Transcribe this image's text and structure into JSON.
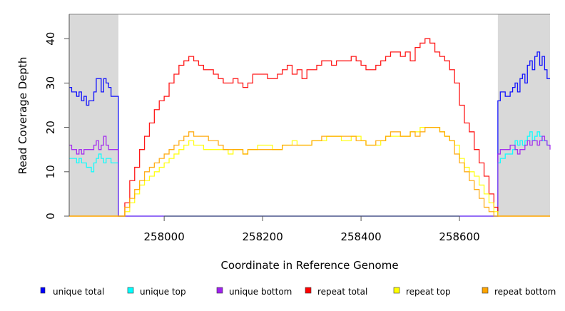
{
  "chart_data": {
    "type": "line",
    "title": "",
    "xlabel": "Coordinate in Reference Genome",
    "ylabel": "Read Coverage Depth",
    "xlim": [
      257807,
      258784
    ],
    "ylim": [
      0,
      45.5
    ],
    "xticks": [
      258000,
      258200,
      258400,
      258600
    ],
    "yticks": [
      0,
      10,
      20,
      30,
      40
    ],
    "shaded_regions": [
      [
        257807,
        257907
      ],
      [
        258678,
        258784
      ]
    ],
    "legend_position": "bottom",
    "series": [
      {
        "name": "unique total",
        "color": "#0000ff",
        "segments": [
          {
            "x": [
              257807,
              257812,
              257817,
              257822,
              257827,
              257832,
              257837,
              257842,
              257847,
              257852,
              257857,
              257862,
              257867,
              257872,
              257877,
              257882,
              257887,
              257892,
              257897,
              257902,
              257907
            ],
            "y": [
              29,
              28,
              28,
              27,
              28,
              26,
              27,
              25,
              26,
              26,
              28,
              31,
              31,
              28,
              31,
              30,
              29,
              27,
              27,
              27,
              27
            ]
          },
          {
            "x": [
              257907,
              258678
            ],
            "y": [
              0,
              0
            ]
          },
          {
            "x": [
              258678,
              258683,
              258688,
              258693,
              258698,
              258703,
              258708,
              258713,
              258718,
              258723,
              258728,
              258733,
              258738,
              258743,
              258748,
              258753,
              258758,
              258763,
              258768,
              258773,
              258778,
              258784
            ],
            "y": [
              26,
              28,
              28,
              27,
              27,
              28,
              29,
              30,
              28,
              31,
              32,
              30,
              34,
              35,
              33,
              36,
              37,
              34,
              36,
              33,
              31,
              31
            ]
          }
        ]
      },
      {
        "name": "unique top",
        "color": "#00ffff",
        "segments": [
          {
            "x": [
              257807,
              257812,
              257817,
              257822,
              257827,
              257832,
              257837,
              257842,
              257847,
              257852,
              257857,
              257862,
              257867,
              257872,
              257877,
              257882,
              257887,
              257892,
              257897,
              257902,
              257907
            ],
            "y": [
              13,
              13,
              13,
              12,
              13,
              12,
              12,
              11,
              11,
              10,
              12,
              13,
              14,
              13,
              12,
              13,
              13,
              12,
              12,
              12,
              12
            ]
          },
          {
            "x": [
              257907,
              258678
            ],
            "y": [
              0,
              0
            ]
          },
          {
            "x": [
              258678,
              258683,
              258688,
              258693,
              258698,
              258703,
              258708,
              258713,
              258718,
              258723,
              258728,
              258733,
              258738,
              258743,
              258748,
              258753,
              258758,
              258763,
              258768,
              258773,
              258778,
              258784
            ],
            "y": [
              12,
              13,
              13,
              14,
              14,
              14,
              15,
              17,
              16,
              17,
              16,
              17,
              18,
              19,
              17,
              18,
              19,
              18,
              17,
              17,
              16,
              16
            ]
          }
        ]
      },
      {
        "name": "unique bottom",
        "color": "#a020f0",
        "segments": [
          {
            "x": [
              257807,
              257812,
              257817,
              257822,
              257827,
              257832,
              257837,
              257842,
              257847,
              257852,
              257857,
              257862,
              257867,
              257872,
              257877,
              257882,
              257887,
              257892,
              257897,
              257902,
              257907
            ],
            "y": [
              16,
              15,
              15,
              14,
              15,
              14,
              15,
              15,
              15,
              15,
              16,
              17,
              15,
              16,
              18,
              16,
              15,
              15,
              15,
              15,
              15
            ]
          },
          {
            "x": [
              257907,
              258678
            ],
            "y": [
              0,
              0
            ]
          },
          {
            "x": [
              258678,
              258683,
              258688,
              258693,
              258698,
              258703,
              258708,
              258713,
              258718,
              258723,
              258728,
              258733,
              258738,
              258743,
              258748,
              258753,
              258758,
              258763,
              258768,
              258773,
              258778,
              258784
            ],
            "y": [
              14,
              15,
              15,
              15,
              15,
              16,
              16,
              15,
              14,
              15,
              15,
              16,
              17,
              16,
              17,
              17,
              16,
              17,
              18,
              17,
              16,
              15
            ]
          }
        ]
      },
      {
        "name": "repeat total",
        "color": "#ff0000",
        "segments": [
          {
            "x": [
              257807,
              257907
            ],
            "y": [
              0,
              0
            ]
          },
          {
            "x": [
              257910,
              257920,
              257930,
              257940,
              257950,
              257960,
              257970,
              257980,
              257990,
              258000,
              258010,
              258020,
              258030,
              258040,
              258050,
              258060,
              258070,
              258080,
              258090,
              258100,
              258110,
              258120,
              258130,
              258140,
              258150,
              258160,
              258170,
              258180,
              258190,
              258200,
              258210,
              258220,
              258230,
              258240,
              258250,
              258260,
              258270,
              258280,
              258290,
              258300,
              258310,
              258320,
              258330,
              258340,
              258350,
              258360,
              258370,
              258380,
              258390,
              258400,
              258410,
              258420,
              258430,
              258440,
              258450,
              258460,
              258470,
              258480,
              258490,
              258500,
              258510,
              258520,
              258530,
              258540,
              258550,
              258560,
              258570,
              258580,
              258590,
              258600,
              258610,
              258620,
              258630,
              258640,
              258650,
              258660,
              258670,
              258678
            ],
            "y": [
              0,
              3,
              8,
              11,
              15,
              18,
              21,
              24,
              26,
              27,
              30,
              32,
              34,
              35,
              36,
              35,
              34,
              33,
              33,
              32,
              31,
              30,
              30,
              31,
              30,
              29,
              30,
              32,
              32,
              32,
              31,
              31,
              32,
              33,
              34,
              32,
              33,
              31,
              33,
              33,
              34,
              35,
              35,
              34,
              35,
              35,
              35,
              36,
              35,
              34,
              33,
              33,
              34,
              35,
              36,
              37,
              37,
              36,
              37,
              35,
              38,
              39,
              40,
              39,
              37,
              36,
              35,
              33,
              30,
              25,
              21,
              19,
              15,
              12,
              9,
              5,
              2,
              0
            ]
          },
          {
            "x": [
              258678,
              258784
            ],
            "y": [
              0,
              0
            ]
          }
        ]
      },
      {
        "name": "repeat top",
        "color": "#ffff00",
        "segments": [
          {
            "x": [
              257807,
              257907
            ],
            "y": [
              0,
              0
            ]
          },
          {
            "x": [
              257910,
              257920,
              257930,
              257940,
              257950,
              257960,
              257970,
              257980,
              257990,
              258000,
              258010,
              258020,
              258030,
              258040,
              258050,
              258060,
              258070,
              258080,
              258090,
              258100,
              258110,
              258120,
              258130,
              258140,
              258150,
              258160,
              258170,
              258180,
              258190,
              258200,
              258210,
              258220,
              258230,
              258240,
              258250,
              258260,
              258270,
              258280,
              258290,
              258300,
              258310,
              258320,
              258330,
              258340,
              258350,
              258360,
              258370,
              258380,
              258390,
              258400,
              258410,
              258420,
              258430,
              258440,
              258450,
              258460,
              258470,
              258480,
              258490,
              258500,
              258510,
              258520,
              258530,
              258540,
              258550,
              258560,
              258570,
              258580,
              258590,
              258600,
              258610,
              258620,
              258630,
              258640,
              258650,
              258660,
              258670,
              258678
            ],
            "y": [
              0,
              1,
              3,
              5,
              7,
              8,
              9,
              10,
              11,
              12,
              13,
              14,
              15,
              16,
              17,
              16,
              16,
              15,
              15,
              15,
              15,
              15,
              14,
              15,
              15,
              14,
              15,
              15,
              16,
              16,
              16,
              15,
              15,
              16,
              16,
              17,
              16,
              16,
              16,
              17,
              17,
              17,
              18,
              18,
              18,
              17,
              17,
              18,
              18,
              17,
              16,
              16,
              16,
              17,
              18,
              18,
              18,
              18,
              18,
              19,
              19,
              20,
              20,
              20,
              20,
              19,
              18,
              17,
              16,
              13,
              11,
              10,
              9,
              7,
              5,
              3,
              1,
              0
            ]
          },
          {
            "x": [
              258678,
              258784
            ],
            "y": [
              0,
              0
            ]
          }
        ]
      },
      {
        "name": "repeat bottom",
        "color": "#ffa500",
        "segments": [
          {
            "x": [
              257807,
              257907
            ],
            "y": [
              0,
              0
            ]
          },
          {
            "x": [
              257910,
              257920,
              257930,
              257940,
              257950,
              257960,
              257970,
              257980,
              257990,
              258000,
              258010,
              258020,
              258030,
              258040,
              258050,
              258060,
              258070,
              258080,
              258090,
              258100,
              258110,
              258120,
              258130,
              258140,
              258150,
              258160,
              258170,
              258180,
              258190,
              258200,
              258210,
              258220,
              258230,
              258240,
              258250,
              258260,
              258270,
              258280,
              258290,
              258300,
              258310,
              258320,
              258330,
              258340,
              258350,
              258360,
              258370,
              258380,
              258390,
              258400,
              258410,
              258420,
              258430,
              258440,
              258450,
              258460,
              258470,
              258480,
              258490,
              258500,
              258510,
              258520,
              258530,
              258540,
              258550,
              258560,
              258570,
              258580,
              258590,
              258600,
              258610,
              258620,
              258630,
              258640,
              258650,
              258660,
              258670,
              258678
            ],
            "y": [
              0,
              2,
              4,
              6,
              8,
              10,
              11,
              12,
              13,
              14,
              15,
              16,
              17,
              18,
              19,
              18,
              18,
              18,
              17,
              17,
              16,
              15,
              15,
              15,
              15,
              14,
              15,
              15,
              15,
              15,
              15,
              15,
              15,
              16,
              16,
              16,
              16,
              16,
              16,
              17,
              17,
              18,
              18,
              18,
              18,
              18,
              18,
              18,
              17,
              17,
              16,
              16,
              17,
              17,
              18,
              19,
              19,
              18,
              18,
              19,
              18,
              19,
              20,
              20,
              20,
              19,
              18,
              17,
              14,
              12,
              10,
              8,
              6,
              4,
              2,
              1,
              0,
              0
            ]
          },
          {
            "x": [
              258678,
              258784
            ],
            "y": [
              0,
              0
            ]
          }
        ]
      }
    ]
  }
}
